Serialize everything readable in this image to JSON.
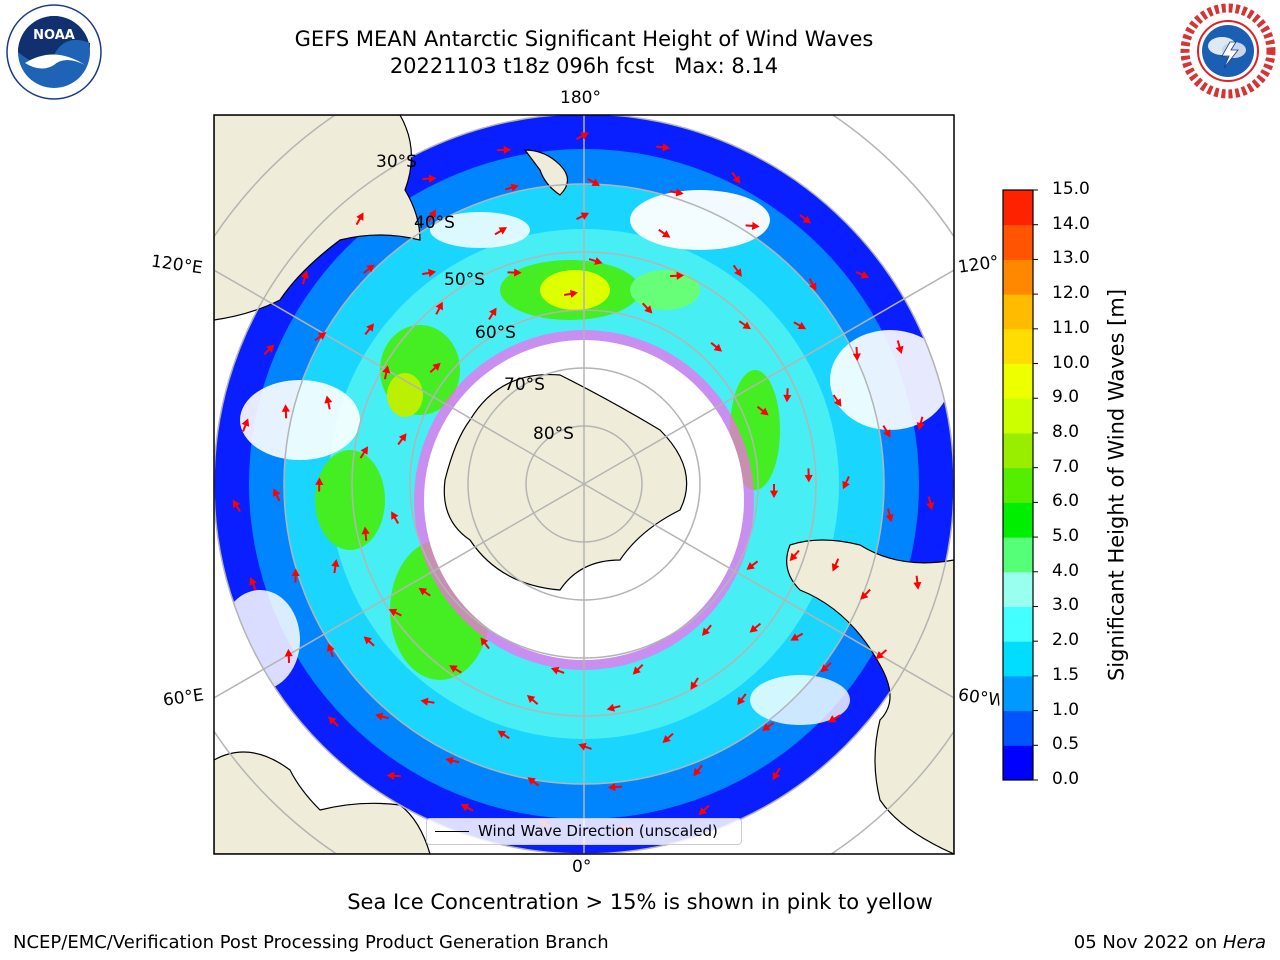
{
  "title": {
    "line1": "GEFS MEAN Antarctic Significant Height of Wind Waves",
    "line2": "20221103 t18z 096h fcst   Max: 8.14"
  },
  "map": {
    "longitude_labels": [
      "180°",
      "120°E",
      "120°",
      "60°E",
      "60°W",
      "0°"
    ],
    "latitude_labels": [
      "30°S",
      "40°S",
      "50°S",
      "60°S",
      "70°S",
      "80°S"
    ],
    "colors": {
      "land": "#efedd9",
      "ocean_no_data": "#ffffff",
      "gridlines": "#b4b4b4",
      "arrows": "#ff0000",
      "sea_ice": "#ff44ee"
    }
  },
  "legend": {
    "label": "Wind Wave Direction (unscaled)"
  },
  "colorbar": {
    "label": "Significant Height of Wind Waves [m]",
    "ticks": [
      "0.0",
      "0.5",
      "1.0",
      "1.5",
      "2.0",
      "3.0",
      "4.0",
      "5.0",
      "6.0",
      "7.0",
      "8.0",
      "9.0",
      "10.0",
      "11.0",
      "12.0",
      "13.0",
      "14.0",
      "15.0"
    ],
    "colors": [
      "#0000ff",
      "#0055ff",
      "#0099ff",
      "#00ddff",
      "#44ffff",
      "#99ffee",
      "#55ff77",
      "#00ee00",
      "#55ee00",
      "#99ee00",
      "#ccff00",
      "#eeff00",
      "#ffdd00",
      "#ffbb00",
      "#ff8800",
      "#ff5500",
      "#ff2200"
    ]
  },
  "caption": "Sea Ice Concentration > 15% is shown in pink to yellow",
  "footer": {
    "left": "NCEP/EMC/Verification Post Processing Product Generation Branch",
    "right_prefix": "05 Nov 2022 on ",
    "right_host": "Hera"
  },
  "logos": {
    "noaa": "NOAA",
    "nws": "NATIONAL WEATHER SERVICE"
  }
}
